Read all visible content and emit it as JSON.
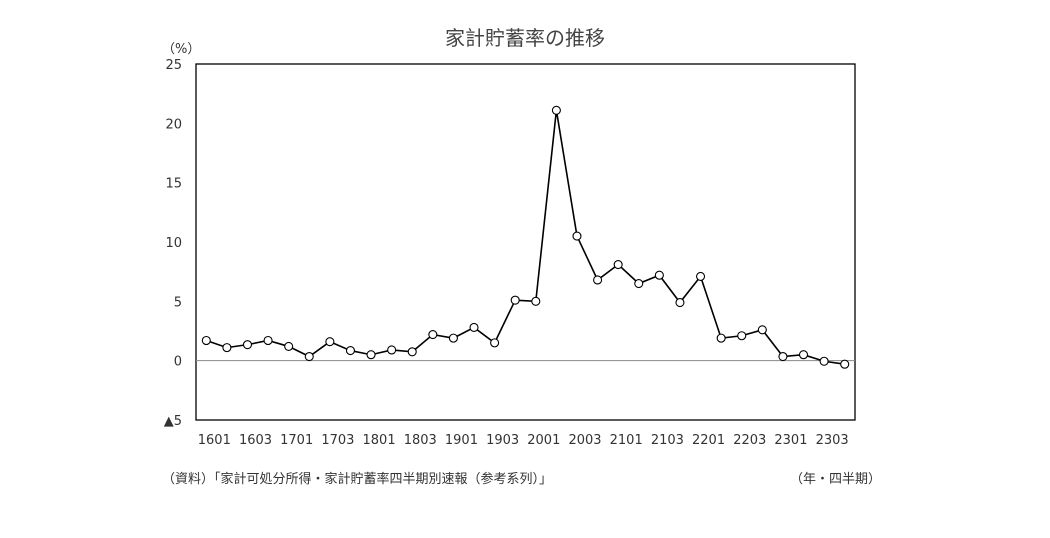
{
  "chart_data": {
    "type": "line",
    "title": "家計貯蓄率の推移",
    "ylabel": "（%）",
    "xlabel": "（年・四半期）",
    "source": "（資料）「家計可処分所得・家計貯蓄率四半期別速報（参考系列）」",
    "ylim": [
      -5,
      25
    ],
    "yticks": [
      25,
      20,
      15,
      10,
      5,
      0,
      -5
    ],
    "ytick_labels": [
      "25",
      "20",
      "15",
      "10",
      "5",
      "0",
      "▲5"
    ],
    "x": [
      "1601",
      "1602",
      "1603",
      "1604",
      "1701",
      "1702",
      "1703",
      "1704",
      "1801",
      "1802",
      "1803",
      "1804",
      "1901",
      "1902",
      "1903",
      "1904",
      "2001",
      "2002",
      "2003",
      "2004",
      "2101",
      "2102",
      "2103",
      "2104",
      "2201",
      "2202",
      "2203",
      "2204",
      "2301",
      "2302",
      "2303",
      "2304"
    ],
    "xtick_labels": [
      "1601",
      "1603",
      "1701",
      "1703",
      "1801",
      "1803",
      "1901",
      "1903",
      "2001",
      "2003",
      "2101",
      "2103",
      "2201",
      "2203",
      "2301",
      "2303"
    ],
    "series": [
      {
        "name": "家計貯蓄率",
        "values": [
          1.7,
          1.1,
          1.35,
          1.7,
          1.2,
          0.35,
          1.6,
          0.85,
          0.5,
          0.9,
          0.75,
          2.2,
          1.9,
          2.8,
          1.5,
          5.1,
          5.0,
          21.1,
          10.5,
          6.8,
          8.1,
          6.5,
          7.2,
          4.9,
          7.1,
          1.9,
          2.1,
          2.6,
          0.35,
          0.5,
          -0.05,
          -0.3
        ]
      }
    ],
    "grid": false,
    "legend": "none"
  }
}
